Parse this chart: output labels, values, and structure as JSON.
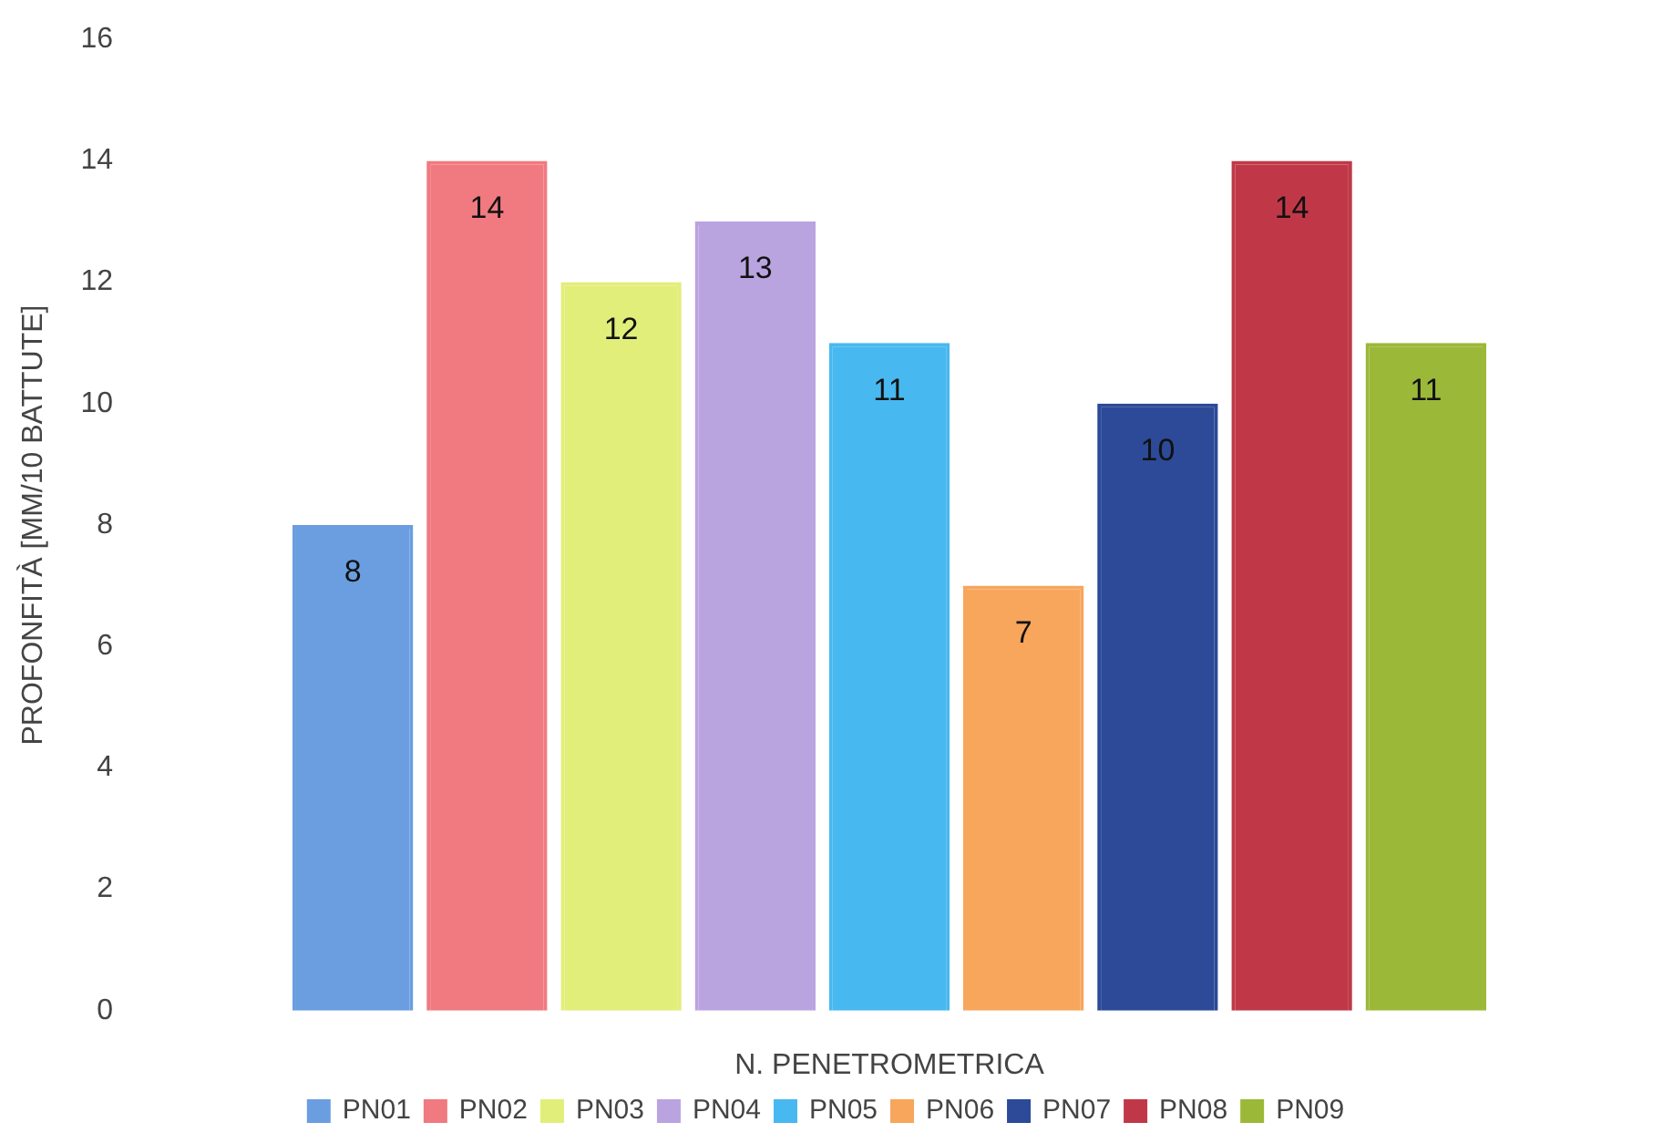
{
  "chart_data": {
    "type": "bar",
    "xlabel": "N. PENETROMETRICA",
    "ylabel": "PROFONFITÀ [MM/10 BATTUTE]",
    "categories": [
      null
    ],
    "series": [
      {
        "name": "PN01",
        "color": "#6a9ee0",
        "values": [
          8
        ]
      },
      {
        "name": "PN02",
        "color": "#f07a80",
        "values": [
          14
        ]
      },
      {
        "name": "PN03",
        "color": "#e2ee7a",
        "values": [
          12
        ]
      },
      {
        "name": "PN04",
        "color": "#b9a4e0",
        "values": [
          13
        ]
      },
      {
        "name": "PN05",
        "color": "#48b8f0",
        "values": [
          11
        ]
      },
      {
        "name": "PN06",
        "color": "#f7a65c",
        "values": [
          7
        ]
      },
      {
        "name": "PN07",
        "color": "#2c4a98",
        "values": [
          10
        ]
      },
      {
        "name": "PN08",
        "color": "#c03848",
        "values": [
          14
        ]
      },
      {
        "name": "PN09",
        "color": "#9cb838",
        "values": [
          11
        ]
      }
    ],
    "ylim": [
      0,
      16
    ],
    "yticks": [
      0,
      2,
      4,
      6,
      8,
      10,
      12,
      14,
      16
    ],
    "grid": false,
    "legend": "bottom",
    "data_labels": true
  }
}
